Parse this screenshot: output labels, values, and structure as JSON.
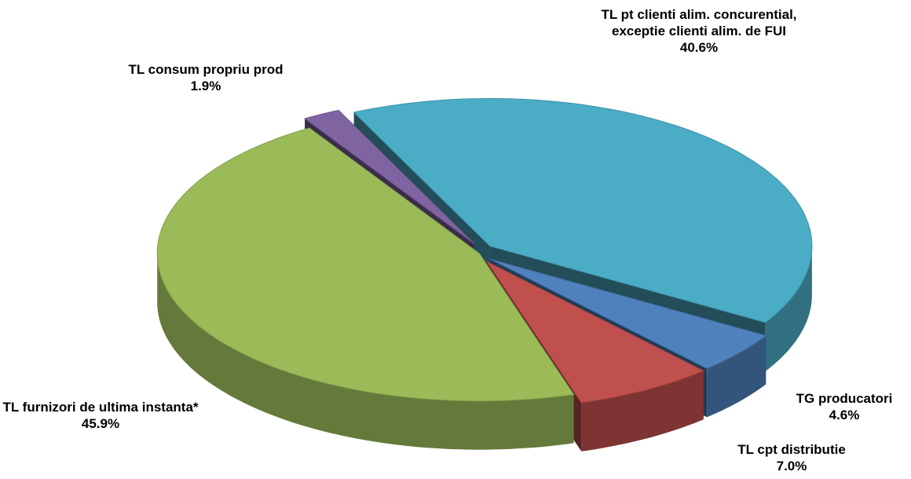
{
  "chart_data": {
    "type": "pie",
    "categories": [
      "TL pt clienti alim. concurential, exceptie clienti alim. de FUI",
      "TG producatori",
      "TL cpt distributie",
      "TL furnizori de ultima instanta*",
      "TL consum propriu prod"
    ],
    "values": [
      40.6,
      4.6,
      7.0,
      45.9,
      1.9
    ],
    "value_labels": [
      "40.6%",
      "4.6%",
      "7.0%",
      "45.9%",
      "1.9%"
    ],
    "colors": [
      "#4bacc6",
      "#4f81bd",
      "#c0504d",
      "#9bbb59",
      "#8064a2"
    ]
  }
}
